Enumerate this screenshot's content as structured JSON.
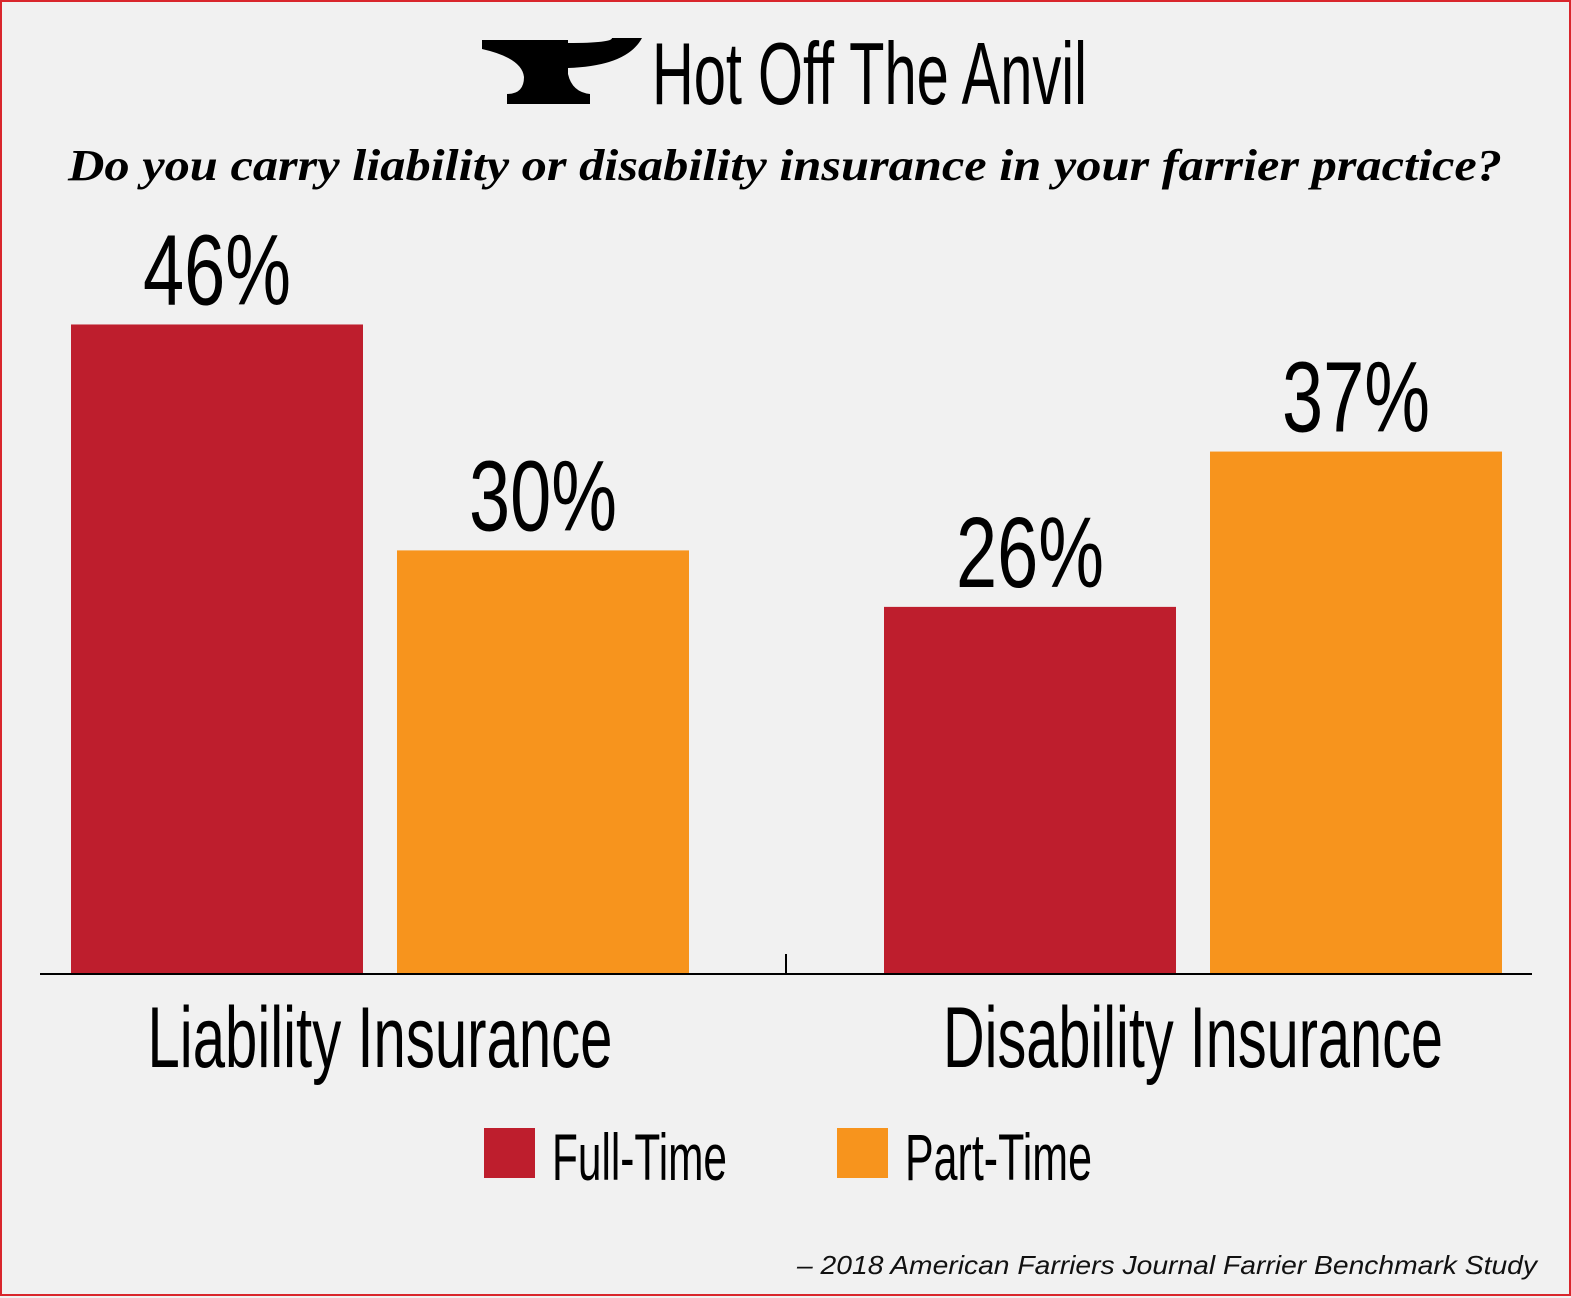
{
  "header": {
    "title": "Hot Off The Anvil",
    "logo": "anvil-icon"
  },
  "chart_data": {
    "type": "bar",
    "title": "Do you carry liability or disability insurance in your farrier practice?",
    "categories": [
      "Liability Insurance",
      "Disability Insurance"
    ],
    "series": [
      {
        "name": "Full-Time",
        "color": "#be1e2d",
        "values": [
          46,
          26
        ],
        "labels": [
          "46%",
          "26%"
        ]
      },
      {
        "name": "Part-Time",
        "color": "#f7941d",
        "values": [
          30,
          37
        ],
        "labels": [
          "30%",
          "37%"
        ]
      }
    ],
    "ylim": [
      0,
      50
    ],
    "xlabel": "",
    "ylabel": "",
    "grid": false,
    "legend_position": "bottom-center",
    "source": "– 2018 American Farriers Journal Farrier Benchmark Study"
  }
}
